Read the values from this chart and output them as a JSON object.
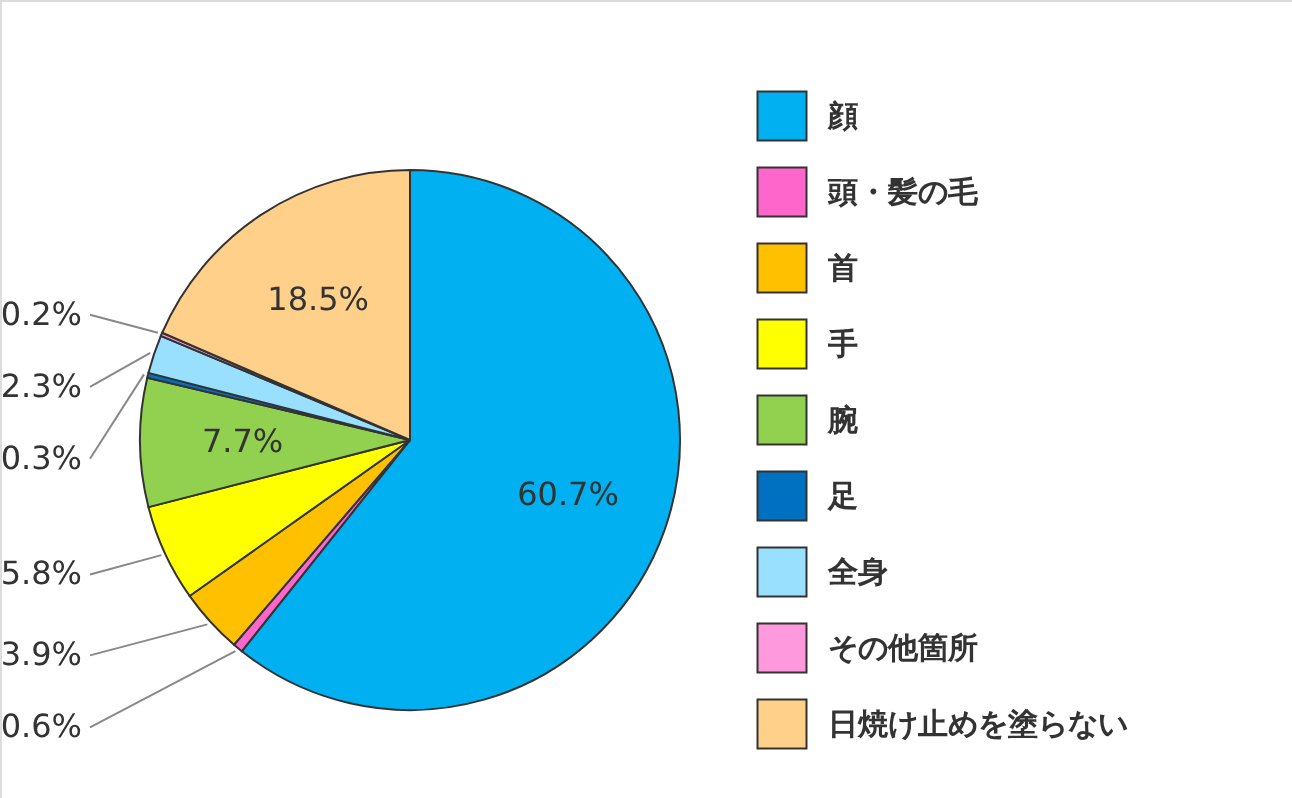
{
  "chart_data": {
    "type": "pie",
    "categories": [
      "顔",
      "頭・髪の毛",
      "首",
      "手",
      "腕",
      "足",
      "全身",
      "その他箇所",
      "日焼け止めを塗らない"
    ],
    "values": [
      60.7,
      0.6,
      3.9,
      5.8,
      7.7,
      0.3,
      2.3,
      0.2,
      18.5
    ],
    "colors": [
      "#00b0f0",
      "#ff66cc",
      "#ffc000",
      "#ffff00",
      "#92d050",
      "#0070c0",
      "#99e0ff",
      "#ff99dd",
      "#ffd08a"
    ],
    "value_labels": [
      "60.7%",
      "0.6%",
      "3.9%",
      "5.8%",
      "7.7%",
      "0.3%",
      "2.3%",
      "0.2%",
      "18.5%"
    ],
    "legend": "right"
  }
}
